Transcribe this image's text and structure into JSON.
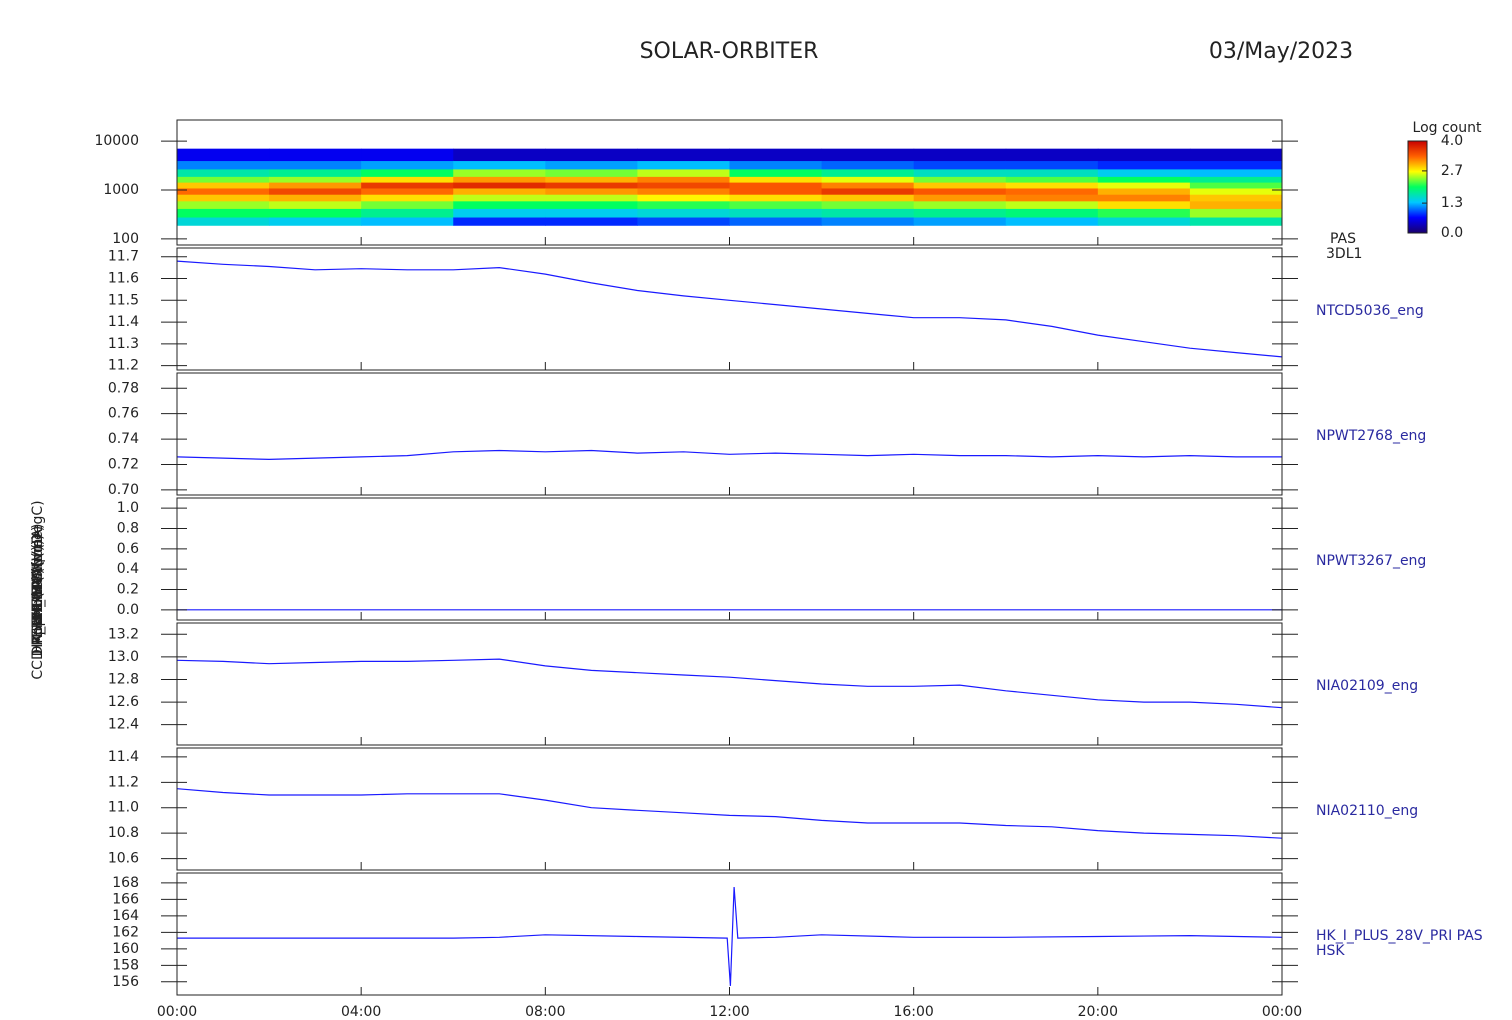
{
  "header": {
    "title": "SOLAR-ORBITER",
    "date": "03/May/2023"
  },
  "chart_data": [
    {
      "type": "heatmap",
      "ylabel": "E (eV)",
      "right_label": "PAS",
      "right_sublabel": "3DL1",
      "log_y": true,
      "xlim": [
        0,
        24
      ],
      "ylim": [
        75,
        27000
      ],
      "yticks": [
        100,
        1000,
        10000
      ],
      "xbins": [
        0,
        2,
        4,
        6,
        8,
        10,
        12,
        14,
        16,
        18,
        20,
        22,
        24
      ],
      "ybins": [
        190,
        280,
        420,
        600,
        820,
        1100,
        1450,
        1900,
        2700,
        4000,
        7000
      ],
      "z": [
        [
          1.5,
          2.0,
          2.4,
          2.9,
          3.3,
          2.9,
          2.3,
          1.7,
          1.1,
          0.6
        ],
        [
          1.4,
          2.0,
          2.5,
          3.0,
          3.5,
          3.1,
          2.4,
          1.8,
          1.1,
          0.6
        ],
        [
          1.3,
          1.8,
          2.3,
          2.8,
          3.3,
          3.6,
          2.8,
          2.0,
          1.2,
          0.6
        ],
        [
          0.8,
          1.4,
          2.0,
          2.5,
          3.0,
          3.7,
          3.1,
          2.4,
          1.3,
          0.4
        ],
        [
          0.8,
          1.4,
          2.0,
          2.5,
          3.1,
          3.6,
          3.0,
          2.3,
          1.2,
          0.4
        ],
        [
          0.9,
          1.5,
          2.1,
          2.7,
          3.2,
          3.5,
          3.2,
          2.5,
          1.3,
          0.4
        ],
        [
          1.0,
          1.6,
          2.2,
          2.8,
          3.4,
          3.4,
          2.8,
          2.0,
          1.1,
          0.4
        ],
        [
          1.1,
          1.7,
          2.3,
          2.9,
          3.6,
          3.2,
          2.6,
          1.8,
          1.0,
          0.4
        ],
        [
          1.2,
          1.8,
          2.4,
          3.1,
          3.4,
          2.9,
          2.3,
          1.6,
          0.9,
          0.4
        ],
        [
          1.3,
          1.9,
          2.5,
          3.2,
          3.3,
          2.8,
          2.2,
          1.6,
          0.9,
          0.4
        ],
        [
          1.5,
          2.1,
          2.8,
          3.2,
          3.0,
          2.6,
          2.0,
          1.4,
          0.8,
          0.4
        ],
        [
          1.7,
          2.4,
          3.0,
          2.9,
          2.6,
          2.2,
          1.8,
          1.3,
          0.8,
          0.4
        ]
      ],
      "colorbar": {
        "title": "Log count",
        "lim": [
          0,
          4
        ],
        "ticks": [
          {
            "value": 0,
            "label": "0.0"
          },
          1.3,
          2.7,
          {
            "value": 4,
            "label": "4.0"
          }
        ],
        "colormap": [
          "#1a006b",
          "#0000ff",
          "#00c8ff",
          "#00ff60",
          "#ffff00",
          "#ff6000",
          "#c80000"
        ]
      }
    },
    {
      "type": "line",
      "ylabel": "CCD Approx Temp (DegC)",
      "right_label": "NTCD5036_eng",
      "color": "#1a1aff",
      "xlim": [
        0,
        24
      ],
      "ylim": [
        11.18,
        11.74
      ],
      "yticks": [
        11.2,
        11.3,
        11.4,
        11.5,
        11.6,
        11.7
      ],
      "x": [
        0,
        1,
        2,
        3,
        4,
        5,
        6,
        7,
        8,
        9,
        10,
        11,
        12,
        13,
        14,
        15,
        16,
        17,
        18,
        19,
        20,
        21,
        22,
        23,
        24
      ],
      "values": [
        11.68,
        11.665,
        11.655,
        11.64,
        11.645,
        11.64,
        11.64,
        11.65,
        11.62,
        11.58,
        11.545,
        11.52,
        11.5,
        11.48,
        11.46,
        11.44,
        11.42,
        11.42,
        11.41,
        11.38,
        11.34,
        11.31,
        11.28,
        11.26,
        11.24
      ]
    },
    {
      "type": "line",
      "ylabel": "SWA-EAS (V)",
      "right_label": "NPWT2768_eng",
      "color": "#1a1aff",
      "xlim": [
        0,
        24
      ],
      "ylim": [
        0.696,
        0.792
      ],
      "yticks": [
        {
          "value": 0.7,
          "label": "0.70"
        },
        0.72,
        0.74,
        0.76,
        0.78
      ],
      "x": [
        0,
        1,
        2,
        3,
        4,
        5,
        6,
        7,
        8,
        9,
        10,
        11,
        12,
        13,
        14,
        15,
        16,
        17,
        18,
        19,
        20,
        21,
        22,
        23,
        24
      ],
      "values": [
        0.726,
        0.725,
        0.724,
        0.725,
        0.726,
        0.727,
        0.73,
        0.731,
        0.73,
        0.731,
        0.729,
        0.73,
        0.728,
        0.729,
        0.728,
        0.727,
        0.728,
        0.727,
        0.727,
        0.726,
        0.727,
        0.726,
        0.727,
        0.726,
        0.726
      ]
    },
    {
      "type": "line",
      "ylabel": "THERMC4 (nc)",
      "right_label": "NPWT3267_eng",
      "color": "#1a1aff",
      "xlim": [
        0,
        24
      ],
      "ylim": [
        -0.1,
        1.1
      ],
      "yticks": [
        {
          "value": 0,
          "label": "0.0"
        },
        0.2,
        0.4,
        0.6,
        0.8,
        {
          "value": 1,
          "label": "1.0"
        }
      ],
      "x": [
        0,
        24
      ],
      "values": [
        0,
        0
      ]
    },
    {
      "type": "line",
      "ylabel": "HK_THERM (None)",
      "right_label": "NIA02109_eng",
      "color": "#1a1aff",
      "xlim": [
        0,
        24
      ],
      "ylim": [
        12.22,
        13.3
      ],
      "yticks": [
        12.4,
        12.6,
        12.8,
        {
          "value": 13,
          "label": "13.0"
        },
        13.2
      ],
      "x": [
        0,
        1,
        2,
        3,
        4,
        5,
        6,
        7,
        8,
        9,
        10,
        11,
        12,
        13,
        14,
        15,
        16,
        17,
        18,
        19,
        20,
        21,
        22,
        23,
        24
      ],
      "values": [
        12.97,
        12.96,
        12.94,
        12.95,
        12.96,
        12.96,
        12.97,
        12.98,
        12.92,
        12.88,
        12.86,
        12.84,
        12.82,
        12.79,
        12.76,
        12.74,
        12.74,
        12.75,
        12.7,
        12.66,
        12.62,
        12.6,
        12.6,
        12.58,
        12.55
      ]
    },
    {
      "type": "line",
      "ylabel": "PERMHB (None)",
      "right_label": "NIA02110_eng",
      "color": "#1a1aff",
      "xlim": [
        0,
        24
      ],
      "ylim": [
        10.51,
        11.47
      ],
      "yticks": [
        10.6,
        10.8,
        {
          "value": 11,
          "label": "11.0"
        },
        11.2,
        11.4
      ],
      "x": [
        0,
        1,
        2,
        3,
        4,
        5,
        6,
        7,
        8,
        9,
        10,
        11,
        12,
        13,
        14,
        15,
        16,
        17,
        18,
        19,
        20,
        21,
        22,
        23,
        24
      ],
      "values": [
        11.15,
        11.12,
        11.1,
        11.1,
        11.1,
        11.11,
        11.11,
        11.11,
        11.06,
        11.0,
        10.98,
        10.96,
        10.94,
        10.93,
        10.9,
        10.88,
        10.88,
        10.88,
        10.86,
        10.85,
        10.82,
        10.8,
        10.79,
        10.78,
        10.76
      ]
    },
    {
      "type": "line",
      "ylabel": "DM_HK_IMON (mA)",
      "right_label": "HK_I_PLUS_28V_PRI PAS",
      "right_sublabel": "HSK",
      "color": "#1a1aff",
      "xlim": [
        0,
        24
      ],
      "ylim": [
        154.4,
        169.2
      ],
      "yticks": [
        156,
        158,
        160,
        162,
        164,
        166,
        168
      ],
      "xticks": [
        {
          "value": 0,
          "label": "00:00"
        },
        {
          "value": 4,
          "label": "04:00"
        },
        {
          "value": 8,
          "label": "08:00"
        },
        {
          "value": 12,
          "label": "12:00"
        },
        {
          "value": 16,
          "label": "16:00"
        },
        {
          "value": 20,
          "label": "20:00"
        },
        {
          "value": 24,
          "label": "00:00"
        }
      ],
      "x": [
        0,
        2,
        4,
        6,
        7,
        8,
        10,
        11.95,
        12.02,
        12.1,
        12.18,
        13,
        14,
        16,
        18,
        20,
        22,
        24
      ],
      "values": [
        161.3,
        161.3,
        161.3,
        161.3,
        161.4,
        161.7,
        161.5,
        161.3,
        155.5,
        167.5,
        161.3,
        161.4,
        161.7,
        161.4,
        161.4,
        161.5,
        161.6,
        161.4
      ]
    }
  ]
}
